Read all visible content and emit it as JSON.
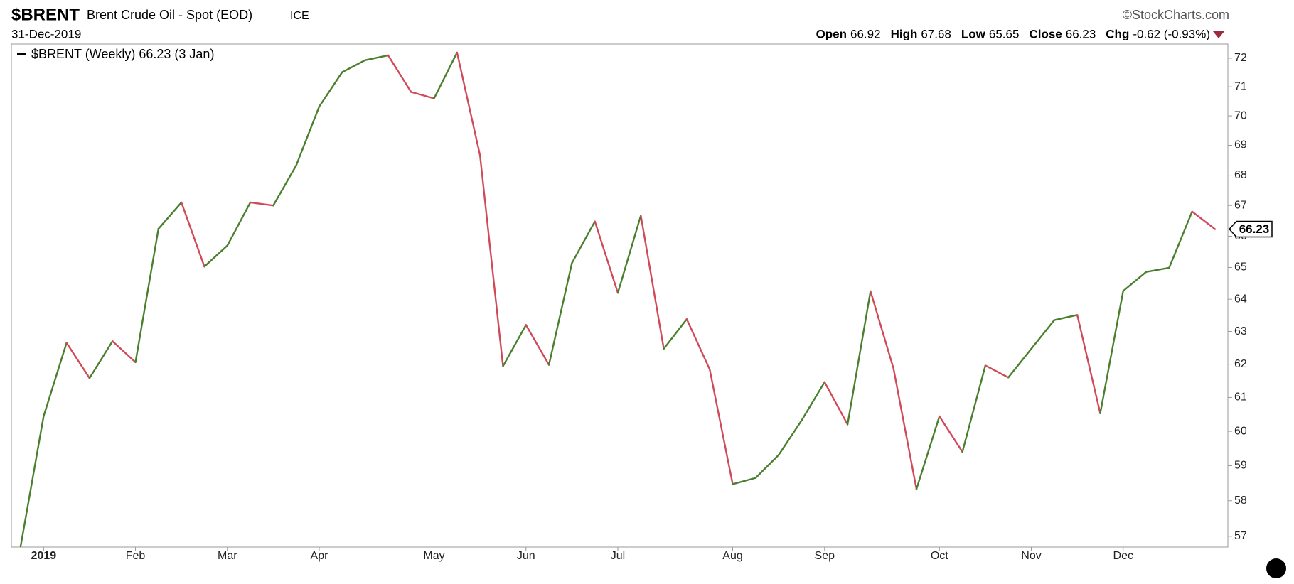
{
  "header": {
    "symbol": "$BRENT",
    "name": "Brent Crude Oil - Spot (EOD)",
    "exchange": "ICE",
    "date": "31-Dec-2019",
    "brand": "©StockCharts.com",
    "quote": [
      {
        "label": "Open",
        "value": "66.92"
      },
      {
        "label": "High",
        "value": "67.68"
      },
      {
        "label": "Low",
        "value": "65.65"
      },
      {
        "label": "Close",
        "value": "66.23"
      },
      {
        "label": "Chg",
        "value": "-0.62 (-0.93%)"
      }
    ]
  },
  "chart_data": {
    "type": "line",
    "legend": "$BRENT (Weekly) 66.23 (3 Jan)",
    "categories": [
      null,
      "2019",
      null,
      null,
      null,
      "Feb",
      null,
      null,
      null,
      "Mar",
      null,
      null,
      null,
      "Apr",
      null,
      null,
      null,
      null,
      "May",
      null,
      null,
      null,
      "Jun",
      null,
      null,
      null,
      "Jul",
      null,
      null,
      null,
      null,
      "Aug",
      null,
      null,
      null,
      "Sep",
      null,
      null,
      null,
      null,
      "Oct",
      null,
      null,
      null,
      "Nov",
      null,
      null,
      null,
      "Dec",
      null,
      null,
      null,
      null
    ],
    "values": [
      56.72,
      60.44,
      62.65,
      61.58,
      62.7,
      62.06,
      66.24,
      67.1,
      65.03,
      65.7,
      67.1,
      67.0,
      68.33,
      70.32,
      71.51,
      71.93,
      72.1,
      70.82,
      70.6,
      72.2,
      68.66,
      61.94,
      63.2,
      61.98,
      65.14,
      66.48,
      64.2,
      66.67,
      62.47,
      63.38,
      61.84,
      58.47,
      58.65,
      59.31,
      60.32,
      61.46,
      60.2,
      64.25,
      61.87,
      58.33,
      60.44,
      59.4,
      61.96,
      61.6,
      62.47,
      63.35,
      63.51,
      60.53,
      64.26,
      64.86,
      64.99,
      66.8,
      66.23
    ],
    "up_color": "#4a7f2e",
    "down_color": "#d04a5a",
    "ylim": [
      56.7,
      72.5
    ],
    "yticks": [
      57,
      58,
      59,
      60,
      61,
      62,
      63,
      64,
      65,
      66,
      67,
      68,
      69,
      70,
      71,
      72
    ],
    "log_scale": true,
    "grid": false
  }
}
